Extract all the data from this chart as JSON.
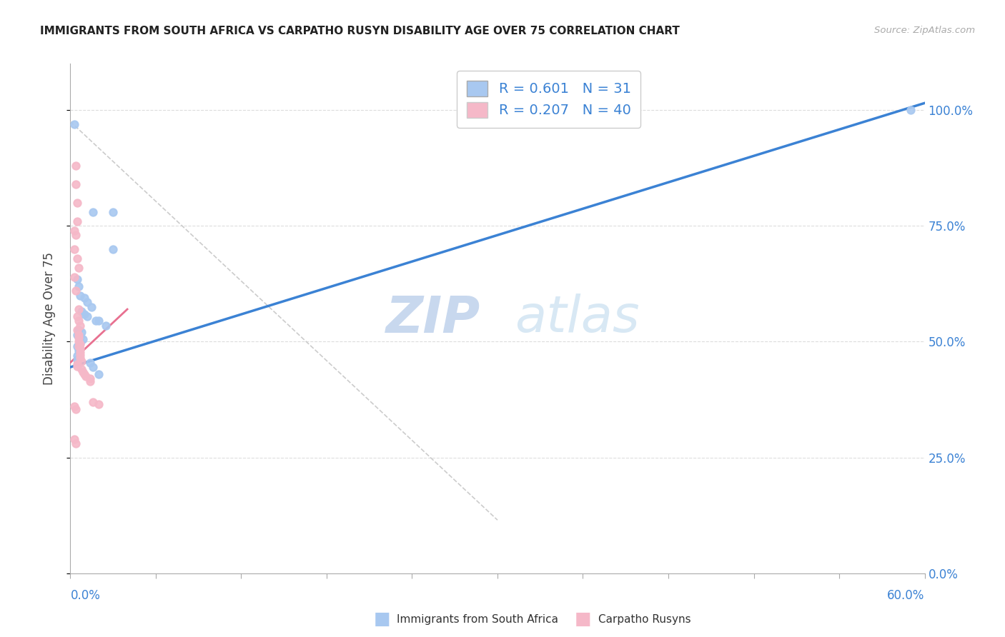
{
  "title": "IMMIGRANTS FROM SOUTH AFRICA VS CARPATHO RUSYN DISABILITY AGE OVER 75 CORRELATION CHART",
  "source": "Source: ZipAtlas.com",
  "ylabel": "Disability Age Over 75",
  "legend_labels": [
    "Immigrants from South Africa",
    "Carpatho Rusyns"
  ],
  "r_blue": 0.601,
  "n_blue": 31,
  "r_pink": 0.207,
  "n_pink": 40,
  "blue_color": "#a8c8f0",
  "pink_color": "#f5b8c8",
  "blue_line_color": "#3b82d4",
  "pink_line_color": "#e87090",
  "watermark_zip": "ZIP",
  "watermark_atlas": "atlas",
  "xlim": [
    0.0,
    0.6
  ],
  "ylim": [
    0.0,
    1.1
  ],
  "yticks": [
    0.0,
    0.25,
    0.5,
    0.75,
    1.0
  ],
  "ytick_labels": [
    "0.0%",
    "25.0%",
    "50.0%",
    "75.0%",
    "100.0%"
  ],
  "xtick_left_label": "0.0%",
  "xtick_right_label": "60.0%",
  "blue_scatter": [
    [
      0.003,
      0.97
    ],
    [
      0.016,
      0.78
    ],
    [
      0.03,
      0.78
    ],
    [
      0.03,
      0.7
    ],
    [
      0.005,
      0.635
    ],
    [
      0.006,
      0.62
    ],
    [
      0.007,
      0.6
    ],
    [
      0.01,
      0.595
    ],
    [
      0.012,
      0.585
    ],
    [
      0.015,
      0.575
    ],
    [
      0.008,
      0.565
    ],
    [
      0.01,
      0.56
    ],
    [
      0.012,
      0.555
    ],
    [
      0.018,
      0.545
    ],
    [
      0.02,
      0.545
    ],
    [
      0.025,
      0.535
    ],
    [
      0.006,
      0.525
    ],
    [
      0.008,
      0.52
    ],
    [
      0.005,
      0.515
    ],
    [
      0.007,
      0.51
    ],
    [
      0.009,
      0.505
    ],
    [
      0.007,
      0.498
    ],
    [
      0.005,
      0.49
    ],
    [
      0.006,
      0.488
    ],
    [
      0.006,
      0.48
    ],
    [
      0.005,
      0.47
    ],
    [
      0.005,
      0.46
    ],
    [
      0.014,
      0.455
    ],
    [
      0.016,
      0.445
    ],
    [
      0.02,
      0.43
    ],
    [
      0.59,
      1.0
    ]
  ],
  "pink_scatter": [
    [
      0.004,
      0.88
    ],
    [
      0.004,
      0.84
    ],
    [
      0.005,
      0.8
    ],
    [
      0.005,
      0.76
    ],
    [
      0.003,
      0.74
    ],
    [
      0.004,
      0.73
    ],
    [
      0.003,
      0.7
    ],
    [
      0.005,
      0.68
    ],
    [
      0.006,
      0.66
    ],
    [
      0.003,
      0.64
    ],
    [
      0.004,
      0.61
    ],
    [
      0.006,
      0.57
    ],
    [
      0.005,
      0.555
    ],
    [
      0.006,
      0.545
    ],
    [
      0.007,
      0.535
    ],
    [
      0.005,
      0.525
    ],
    [
      0.006,
      0.515
    ],
    [
      0.006,
      0.508
    ],
    [
      0.006,
      0.5
    ],
    [
      0.007,
      0.495
    ],
    [
      0.006,
      0.49
    ],
    [
      0.007,
      0.485
    ],
    [
      0.007,
      0.478
    ],
    [
      0.007,
      0.472
    ],
    [
      0.007,
      0.465
    ],
    [
      0.008,
      0.458
    ],
    [
      0.005,
      0.452
    ],
    [
      0.005,
      0.447
    ],
    [
      0.008,
      0.44
    ],
    [
      0.009,
      0.435
    ],
    [
      0.01,
      0.43
    ],
    [
      0.011,
      0.425
    ],
    [
      0.014,
      0.42
    ],
    [
      0.014,
      0.415
    ],
    [
      0.016,
      0.37
    ],
    [
      0.02,
      0.365
    ],
    [
      0.003,
      0.36
    ],
    [
      0.004,
      0.355
    ],
    [
      0.003,
      0.29
    ],
    [
      0.004,
      0.28
    ]
  ],
  "blue_trend": [
    0.0,
    0.445,
    0.6,
    1.015
  ],
  "pink_trend": [
    0.0,
    0.455,
    0.04,
    0.57
  ],
  "diag_line": [
    0.0,
    0.975,
    0.3,
    0.115
  ]
}
